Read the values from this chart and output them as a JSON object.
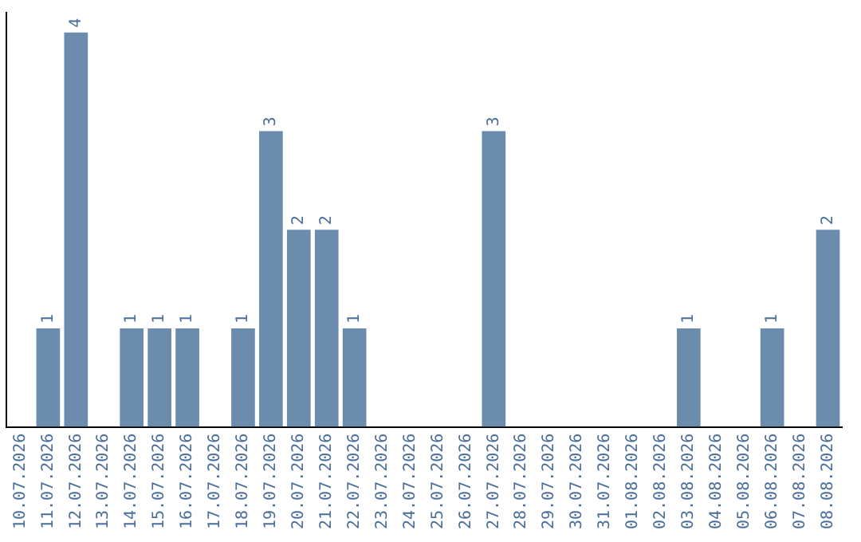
{
  "chart_data": {
    "type": "bar",
    "categories": [
      "10.07.2026",
      "11.07.2026",
      "12.07.2026",
      "13.07.2026",
      "14.07.2026",
      "15.07.2026",
      "16.07.2026",
      "17.07.2026",
      "18.07.2026",
      "19.07.2026",
      "20.07.2026",
      "21.07.2026",
      "22.07.2026",
      "23.07.2026",
      "24.07.2026",
      "25.07.2026",
      "26.07.2026",
      "27.07.2026",
      "28.07.2026",
      "29.07.2026",
      "30.07.2026",
      "31.07.2026",
      "01.08.2026",
      "02.08.2026",
      "03.08.2026",
      "04.08.2026",
      "05.08.2026",
      "06.08.2026",
      "07.08.2026",
      "08.08.2026"
    ],
    "values": [
      0,
      1,
      4,
      0,
      1,
      1,
      1,
      0,
      1,
      3,
      2,
      2,
      1,
      0,
      0,
      0,
      0,
      3,
      0,
      0,
      0,
      0,
      0,
      0,
      1,
      0,
      0,
      1,
      0,
      2
    ],
    "value_labels": [
      null,
      "1",
      "4",
      null,
      "1",
      "1",
      "1",
      null,
      "1",
      "3",
      "2",
      "2",
      "1",
      null,
      null,
      null,
      null,
      "3",
      null,
      null,
      null,
      null,
      null,
      null,
      "1",
      null,
      null,
      "1",
      null,
      "2"
    ],
    "color": "#6b8cac",
    "ylim": [
      0,
      4.2
    ],
    "tick_labels": "x",
    "grid": false,
    "legend": false
  }
}
